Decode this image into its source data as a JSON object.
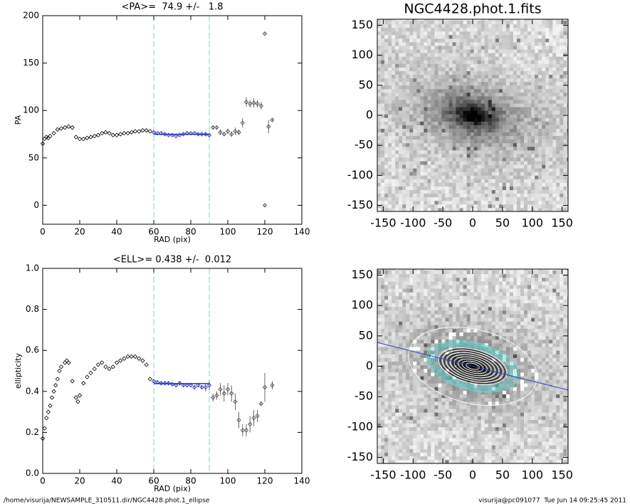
{
  "chart_data": [
    {
      "type": "profile",
      "title": "<PA>=  74.9 +/-   1.8",
      "xlabel": "RAD (pix)",
      "ylabel": "PA",
      "xlim": [
        0,
        140
      ],
      "ylim": [
        -20,
        200
      ],
      "xticks": [
        0,
        20,
        40,
        60,
        80,
        100,
        120,
        140
      ],
      "yticks": [
        0,
        50,
        100,
        150,
        200
      ],
      "vlines": [
        60,
        90
      ],
      "vline_color": "#66dddd",
      "fit": {
        "value": 74.9,
        "x": [
          60,
          90
        ],
        "color": "#2233bb"
      },
      "series": [
        {
          "color": "#000000",
          "x": [
            0,
            1,
            2,
            3,
            4,
            6,
            8,
            10,
            12,
            14,
            16,
            18,
            20,
            22,
            24,
            26,
            28,
            30,
            32,
            34,
            36,
            38,
            40,
            42,
            44,
            46,
            48,
            50,
            52,
            54,
            56,
            58
          ],
          "values": [
            65,
            70,
            72,
            71,
            73,
            76,
            80,
            81,
            82,
            83,
            82,
            72,
            70,
            70,
            71,
            72,
            73,
            74,
            76,
            77,
            76,
            74,
            74,
            75,
            76,
            76,
            77,
            78,
            78,
            79,
            79,
            78
          ]
        },
        {
          "color": "#2233bb",
          "x": [
            60,
            62,
            64,
            66,
            68,
            70,
            72,
            74,
            76,
            78,
            80,
            82,
            84,
            86,
            88,
            90
          ],
          "values": [
            77,
            76,
            76,
            75,
            74,
            74,
            73,
            74,
            75,
            76,
            76,
            76,
            75,
            75,
            75,
            74
          ],
          "errors": [
            1,
            1,
            1,
            1,
            1,
            1,
            1,
            1,
            1,
            1,
            1,
            1,
            1,
            1,
            2,
            2
          ]
        },
        {
          "color": "#444444",
          "x": [
            92,
            94,
            96,
            98,
            100,
            102,
            104,
            106,
            108,
            110,
            112,
            114,
            116,
            118,
            120,
            120,
            122,
            124
          ],
          "values": [
            82,
            82,
            77,
            75,
            78,
            75,
            78,
            77,
            87,
            109,
            107,
            108,
            107,
            105,
            181,
            0,
            83,
            90
          ],
          "errors": [
            2,
            2,
            3,
            2,
            3,
            3,
            4,
            3,
            5,
            5,
            4,
            5,
            4,
            4,
            1,
            1,
            7,
            2
          ]
        }
      ]
    },
    {
      "type": "profile",
      "title": "<ELL>= 0.438 +/-  0.012",
      "xlabel": "RAD (pix)",
      "ylabel": "ellipticity",
      "xlim": [
        0,
        140
      ],
      "ylim": [
        0,
        1
      ],
      "xticks": [
        0,
        20,
        40,
        60,
        80,
        100,
        120,
        140
      ],
      "yticks": [
        {
          "value": 0,
          "label": "0.0"
        },
        0.2,
        0.4,
        0.6,
        0.8,
        {
          "value": 1,
          "label": "1.0"
        }
      ],
      "vlines": [
        60,
        90
      ],
      "vline_color": "#66dddd",
      "fit": {
        "value": 0.438,
        "x": [
          60,
          90
        ],
        "color": "#2233bb"
      },
      "series": [
        {
          "color": "#000000",
          "x": [
            0,
            1,
            2,
            3,
            4,
            5,
            6,
            7,
            8,
            9,
            10,
            12,
            13,
            14,
            16,
            18,
            19,
            20,
            22,
            24,
            26,
            28,
            30,
            32,
            34,
            36,
            38,
            40,
            42,
            44,
            46,
            48,
            50,
            52,
            54,
            56,
            58
          ],
          "values": [
            0.17,
            0.22,
            0.27,
            0.3,
            0.33,
            0.37,
            0.4,
            0.43,
            0.46,
            0.5,
            0.52,
            0.54,
            0.55,
            0.54,
            0.45,
            0.37,
            0.35,
            0.38,
            0.44,
            0.47,
            0.49,
            0.51,
            0.53,
            0.54,
            0.52,
            0.51,
            0.52,
            0.54,
            0.55,
            0.56,
            0.57,
            0.57,
            0.57,
            0.56,
            0.55,
            0.53,
            0.46
          ]
        },
        {
          "color": "#2233bb",
          "x": [
            60,
            62,
            64,
            66,
            68,
            70,
            72,
            74,
            76,
            78,
            80,
            82,
            84,
            86,
            88,
            90
          ],
          "values": [
            0.45,
            0.445,
            0.44,
            0.44,
            0.44,
            0.435,
            0.43,
            0.44,
            0.43,
            0.43,
            0.43,
            0.42,
            0.43,
            0.42,
            0.42,
            0.43
          ],
          "errors": [
            0.01,
            0.01,
            0.01,
            0.01,
            0.01,
            0.01,
            0.01,
            0.01,
            0.01,
            0.01,
            0.01,
            0.01,
            0.01,
            0.01,
            0.02,
            0.02
          ]
        },
        {
          "color": "#444444",
          "x": [
            92,
            94,
            96,
            98,
            100,
            102,
            104,
            106,
            108,
            110,
            112,
            114,
            116,
            118,
            120,
            124
          ],
          "values": [
            0.37,
            0.38,
            0.41,
            0.39,
            0.41,
            0.39,
            0.35,
            0.26,
            0.21,
            0.21,
            0.24,
            0.27,
            0.28,
            0.34,
            0.42,
            0.43
          ],
          "errors": [
            0.02,
            0.02,
            0.03,
            0.04,
            0.03,
            0.04,
            0.04,
            0.04,
            0.03,
            0.03,
            0.04,
            0.04,
            0.03,
            0.01,
            0.07,
            0.02
          ]
        }
      ]
    },
    {
      "type": "image",
      "title": "NGC4428.phot.1.fits",
      "xlim": [
        -160,
        160
      ],
      "ylim": [
        -160,
        160
      ],
      "xticks": [
        -150,
        -100,
        -50,
        0,
        50,
        100,
        150
      ],
      "yticks": [
        -150,
        -100,
        -50,
        0,
        50,
        100,
        150
      ],
      "contours": false
    },
    {
      "type": "image",
      "xlim": [
        -160,
        160
      ],
      "ylim": [
        -160,
        160
      ],
      "xticks": [
        -150,
        -100,
        -50,
        0,
        50,
        100,
        150
      ],
      "yticks": [
        -150,
        -100,
        -50,
        0,
        50,
        100,
        150
      ],
      "contours": true
    }
  ],
  "footer": {
    "left": "/home/visurija/NEWSAMPLE_310511.dir/NGC4428.phot.1_ellipse",
    "right": "visurija@pc091077  Tue Jun 14 09:25:45 2011"
  }
}
